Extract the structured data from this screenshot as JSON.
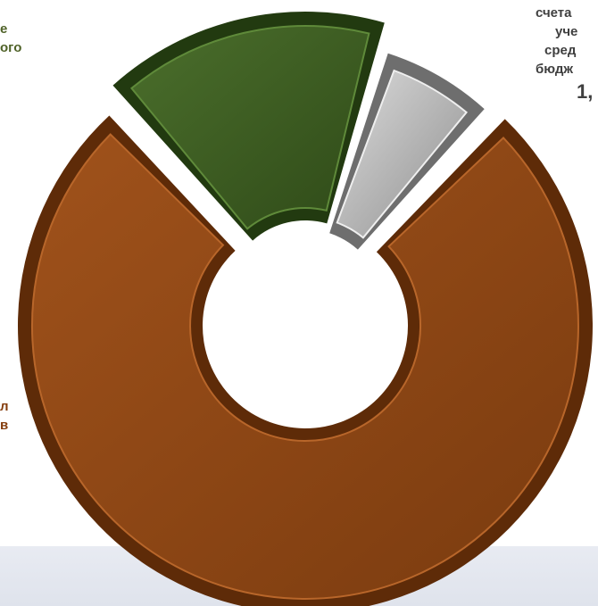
{
  "chart_data": {
    "type": "pie",
    "variant": "doughnut",
    "slices": [
      {
        "label_lines": [
          "е",
          "ого"
        ],
        "value_text": "",
        "color": "#3f6122"
      },
      {
        "label_lines": [
          "счета",
          "уче",
          "сред",
          "бюдж"
        ],
        "value_text": "1,",
        "color": "#a9a9a9"
      },
      {
        "label_lines": [
          "л",
          "в"
        ],
        "value_text": "",
        "color": "#8b4513"
      }
    ]
  },
  "colors": {
    "green": "#3f6122",
    "gray": "#a9a9a9",
    "brown": "#8b4513",
    "band": "#e4e7ef"
  }
}
